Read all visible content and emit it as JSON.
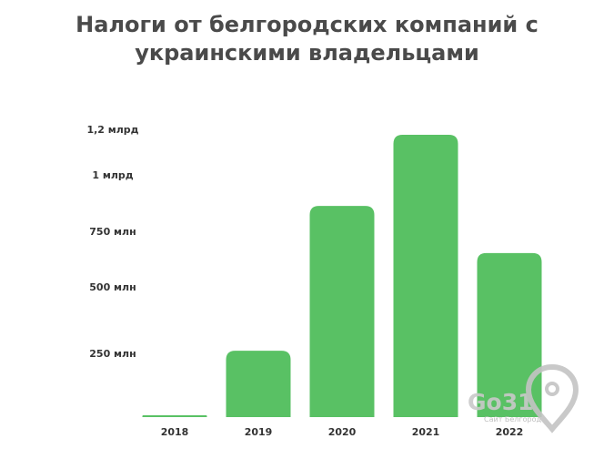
{
  "chart_data": {
    "type": "bar",
    "title_lines": [
      "Налоги от белгородских компаний с",
      "украинскими владельцами"
    ],
    "categories": [
      "2018",
      "2019",
      "2020",
      "2021",
      "2022"
    ],
    "values": [
      3,
      275,
      875,
      1170,
      680
    ],
    "ytick_labels": [
      {
        "value": 250,
        "label": "250  млн"
      },
      {
        "value": 500,
        "label": "500 млн"
      },
      {
        "value": 750,
        "label": "750 млн"
      },
      {
        "value": 1000,
        "label": "1 млрд"
      },
      {
        "value": 1200,
        "label": "1,2 млрд"
      }
    ],
    "ylim": [
      0,
      1200
    ],
    "unit": "млн руб.",
    "grid": false,
    "bar_color": "#59c164"
  },
  "watermark": {
    "text": "Go31",
    "subtitle": "Сайт Белгорода",
    "icon": "map-pin-icon"
  }
}
